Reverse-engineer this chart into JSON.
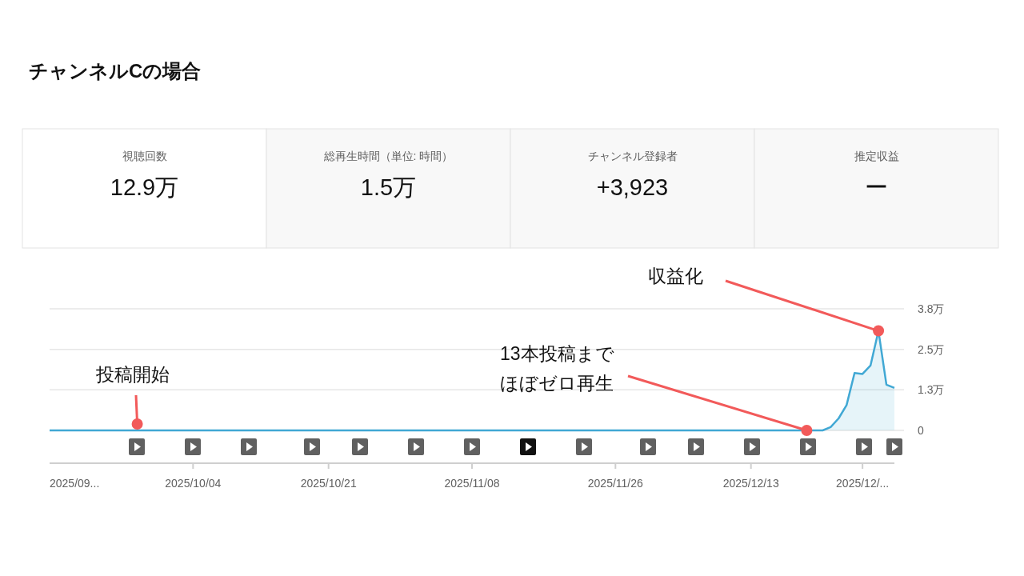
{
  "chart_data": [
    {
      "type": "other",
      "title": "チャンネルCの場合",
      "categories": [
        "視聴回数",
        "総再生時間（単位: 時間）",
        "チャンネル登録者",
        "推定収益"
      ],
      "value_labels": [
        "12.9万",
        "1.5万",
        "+3,923",
        "ー"
      ]
    },
    {
      "type": "area",
      "grid": "y",
      "xlim": [
        "2025-09-16",
        "2025-12-31"
      ],
      "xticks": [
        {
          "value": "2025-09-16",
          "label": "2025/09..."
        },
        {
          "value": "2025-10-04",
          "label": "2025/10/04"
        },
        {
          "value": "2025-10-21",
          "label": "2025/10/21"
        },
        {
          "value": "2025-11-08",
          "label": "2025/11/08"
        },
        {
          "value": "2025-11-26",
          "label": "2025/11/26"
        },
        {
          "value": "2025-12-13",
          "label": "2025/12/13"
        },
        {
          "value": "2025-12-27",
          "label": "2025/12/..."
        }
      ],
      "ylim": [
        0,
        3.75
      ],
      "yticks": [
        {
          "value": 0,
          "label": "0"
        },
        {
          "value": 1.25,
          "label": "1.3万"
        },
        {
          "value": 2.5,
          "label": "2.5万"
        },
        {
          "value": 3.75,
          "label": "3.8万"
        }
      ],
      "series": [
        {
          "color": "#41a8d4",
          "x": [
            "2025-09-16",
            "2025-12-22",
            "2025-12-23",
            "2025-12-24",
            "2025-12-25",
            "2025-12-26",
            "2025-12-27",
            "2025-12-28",
            "2025-12-29",
            "2025-12-30",
            "2025-12-31"
          ],
          "values": [
            0,
            0,
            0.1,
            0.37,
            0.78,
            1.77,
            1.74,
            2.0,
            3.07,
            1.41,
            1.31
          ]
        }
      ],
      "annotations": [
        {
          "text": "投稿開始",
          "x": "2025-09-27",
          "y": 0
        },
        {
          "text": "13本投稿までほぼゼロ再生",
          "x": "2025-12-20",
          "y": 0
        },
        {
          "text": "収益化",
          "x": "2025-12-29",
          "y": 3.07
        }
      ]
    }
  ]
}
